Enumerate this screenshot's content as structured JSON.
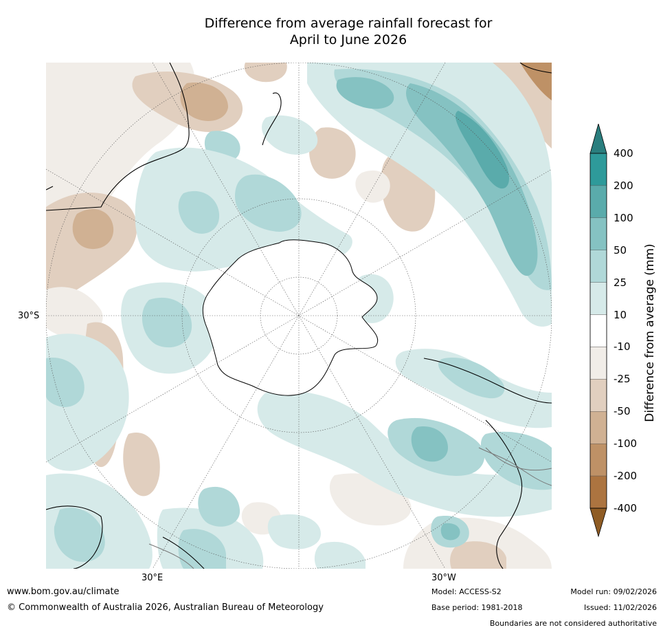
{
  "title": {
    "line1": "Difference from average rainfall forecast for",
    "line2": "April to June 2026"
  },
  "map": {
    "projection": "south polar stereographic",
    "labels": {
      "lat_30s": "30°S",
      "lon_30e": "30°E",
      "lon_30w": "30°W"
    }
  },
  "colorbar": {
    "title": "Difference from average (mm)",
    "ticks": [
      "400",
      "200",
      "100",
      "50",
      "25",
      "10",
      "-10",
      "-25",
      "-50",
      "-100",
      "-200",
      "-400"
    ],
    "colors": [
      "#2a7e7e",
      "#2e9a9a",
      "#5aabab",
      "#85c2c2",
      "#b0d8d8",
      "#d6eae9",
      "#ffffff",
      "#f1ede8",
      "#e1cfbf",
      "#d0b193",
      "#be9166",
      "#ac7440",
      "#8f5c24"
    ]
  },
  "footer": {
    "url": "www.bom.gov.au/climate",
    "copyright": "© Commonwealth of Australia 2026, Australian Bureau of Meteorology",
    "model": "Model: ACCESS-S2",
    "base_period": "Base period: 1981-2018",
    "model_run": "Model run: 09/02/2026",
    "issued": "Issued: 11/02/2026",
    "disclaimer": "Boundaries are not considered authoritative"
  }
}
